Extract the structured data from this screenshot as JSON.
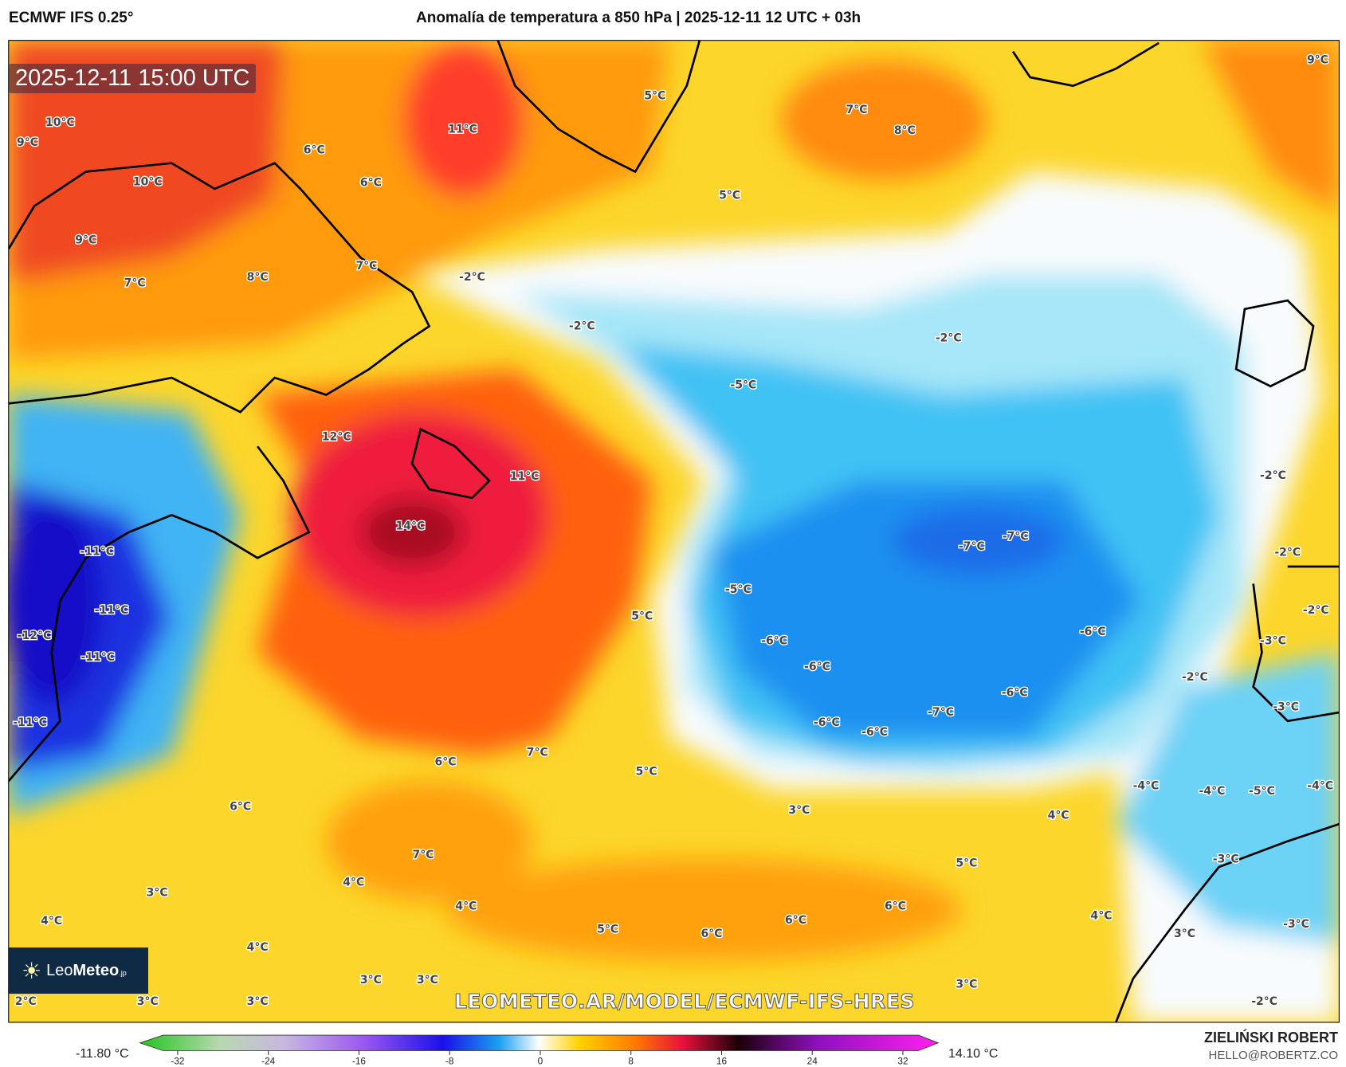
{
  "header": {
    "model": "ECMWF IFS 0.25°",
    "title": "Anomalía de temperatura a 850 hPa | 2025-12-11 12 UTC + 03h"
  },
  "map": {
    "valid_time": "2025-12-11 15:00 UTC",
    "url_watermark": "LEOMETEO.AR/MODEL/ECMWF-IFS-HRES",
    "logo_text": "LeoMeteo.jp",
    "labels": [
      "9°C",
      "5°C",
      "7°C",
      "8°C",
      "11°C",
      "10°C",
      "9°C",
      "6°C",
      "10°C",
      "6°C",
      "5°C",
      "9°C",
      "7°C",
      "8°C",
      "7°C",
      "-2°C",
      "-2°C",
      "-2°C",
      "-5°C",
      "12°C",
      "11°C",
      "-2°C",
      "14°C",
      "-7°C",
      "-7°C",
      "-11°C",
      "-2°C",
      "-5°C",
      "5°C",
      "-11°C",
      "-2°C",
      "-12°C",
      "-6°C",
      "-6°C",
      "-3°C",
      "-6°C",
      "-11°C",
      "-2°C",
      "-6°C",
      "-7°C",
      "-3°C",
      "-11°C",
      "-6°C",
      "-6°C",
      "7°C",
      "6°C",
      "5°C",
      "-4°C",
      "-4°C",
      "-5°C",
      "-4°C",
      "6°C",
      "3°C",
      "4°C",
      "7°C",
      "-3°C",
      "5°C",
      "4°C",
      "3°C",
      "6°C",
      "4°C",
      "4°C",
      "4°C",
      "-3°C",
      "5°C",
      "6°C",
      "6°C",
      "3°C",
      "4°C",
      "3°C",
      "3°C",
      "3°C",
      "2°C",
      "3°C",
      "3°C",
      "-2°C"
    ]
  },
  "colorbar": {
    "min_label": "-11.80 °C",
    "max_label": "14.10 °C",
    "ticks": [
      "-32",
      "-24",
      "-16",
      "-8",
      "0",
      "8",
      "16",
      "24",
      "32"
    ],
    "colors": [
      "#22c41e",
      "#b8d8b0",
      "#c8b8e0",
      "#9a58f0",
      "#1a10e8",
      "#1aa0f0",
      "#ffffff",
      "#ffd200",
      "#ff7a00",
      "#e8103c",
      "#1a0008",
      "#9010c0",
      "#ff20f0"
    ]
  },
  "credits": {
    "author": "ZIELIŃSKI ROBERT",
    "email": "HELLO@ROBERTZ.CO"
  }
}
